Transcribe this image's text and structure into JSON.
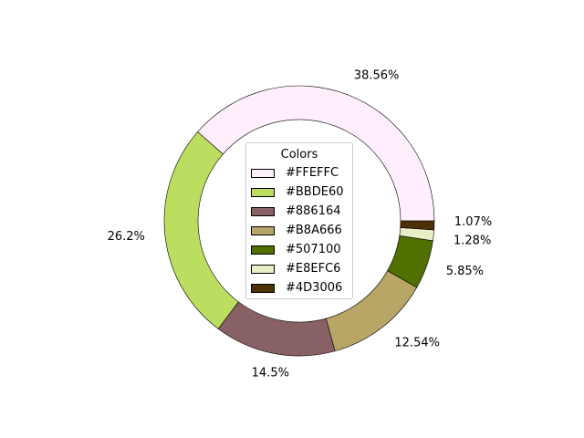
{
  "chart_data": {
    "type": "pie",
    "donut": true,
    "legend_title": "Colors",
    "legend_placement": "center",
    "slices": [
      {
        "label": "#FFEFFC",
        "value": 38.56,
        "pct_label": "38.56%",
        "color": "#FFEFFC"
      },
      {
        "label": "#BBDE60",
        "value": 26.2,
        "pct_label": "26.2%",
        "color": "#BBDE60"
      },
      {
        "label": "#886164",
        "value": 14.5,
        "pct_label": "14.5%",
        "color": "#886164"
      },
      {
        "label": "#B8A666",
        "value": 12.54,
        "pct_label": "12.54%",
        "color": "#B8A666"
      },
      {
        "label": "#507100",
        "value": 5.85,
        "pct_label": "5.85%",
        "color": "#507100"
      },
      {
        "label": "#E8EFC6",
        "value": 1.28,
        "pct_label": "1.28%",
        "color": "#E8EFC6"
      },
      {
        "label": "#4D3006",
        "value": 1.07,
        "pct_label": "1.07%",
        "color": "#4D3006"
      }
    ]
  }
}
